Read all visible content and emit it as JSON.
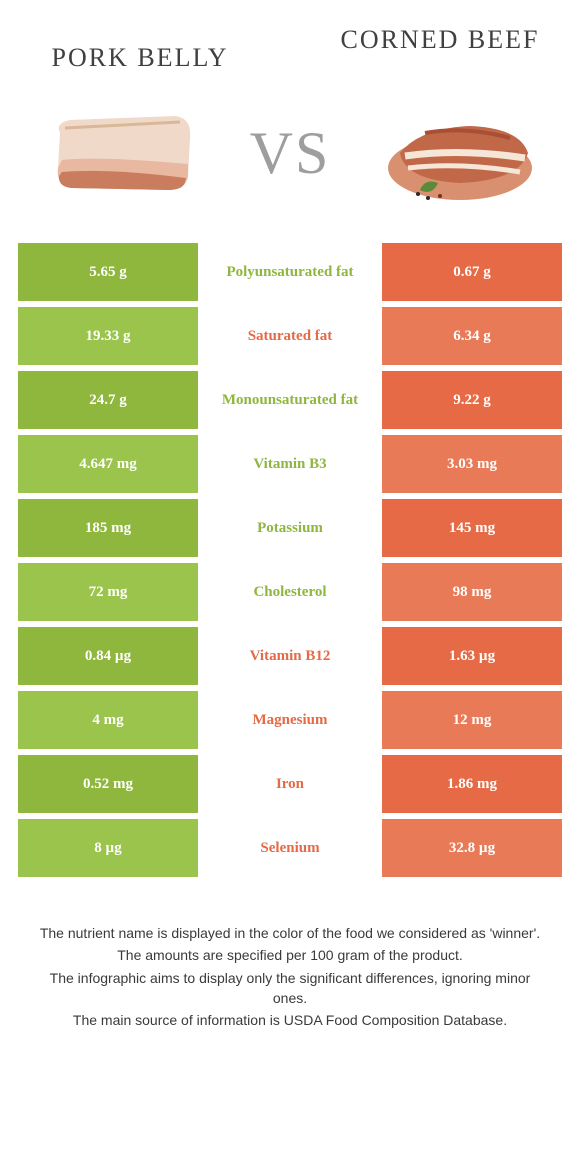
{
  "colors": {
    "left": "#8fb63d",
    "right": "#e56a45",
    "mid_text_left": "#8fb63d",
    "mid_text_right": "#e56a45",
    "vs": "#9e9e9e",
    "title": "#404040",
    "left_light": "#9ac44b",
    "right_light": "#e87a57"
  },
  "header": {
    "left_title": "Pork belly",
    "right_title": "Corned beef",
    "vs": "VS"
  },
  "rows": [
    {
      "left": "5.65 g",
      "label": "Polyunsaturated fat",
      "right": "0.67 g",
      "winner": "left"
    },
    {
      "left": "19.33 g",
      "label": "Saturated fat",
      "right": "6.34 g",
      "winner": "right"
    },
    {
      "left": "24.7 g",
      "label": "Monounsaturated fat",
      "right": "9.22 g",
      "winner": "left"
    },
    {
      "left": "4.647 mg",
      "label": "Vitamin B3",
      "right": "3.03 mg",
      "winner": "left"
    },
    {
      "left": "185 mg",
      "label": "Potassium",
      "right": "145 mg",
      "winner": "left"
    },
    {
      "left": "72 mg",
      "label": "Cholesterol",
      "right": "98 mg",
      "winner": "left"
    },
    {
      "left": "0.84 µg",
      "label": "Vitamin B12",
      "right": "1.63 µg",
      "winner": "right"
    },
    {
      "left": "4 mg",
      "label": "Magnesium",
      "right": "12 mg",
      "winner": "right"
    },
    {
      "left": "0.52 mg",
      "label": "Iron",
      "right": "1.86 mg",
      "winner": "right"
    },
    {
      "left": "8 µg",
      "label": "Selenium",
      "right": "32.8 µg",
      "winner": "right"
    }
  ],
  "footnotes": [
    "The nutrient name is displayed in the color of the food we considered as 'winner'.",
    "The amounts are specified per 100 gram of the product.",
    "The infographic aims to display only the significant differences, ignoring minor ones.",
    "The main source of information is USDA Food Composition Database."
  ]
}
